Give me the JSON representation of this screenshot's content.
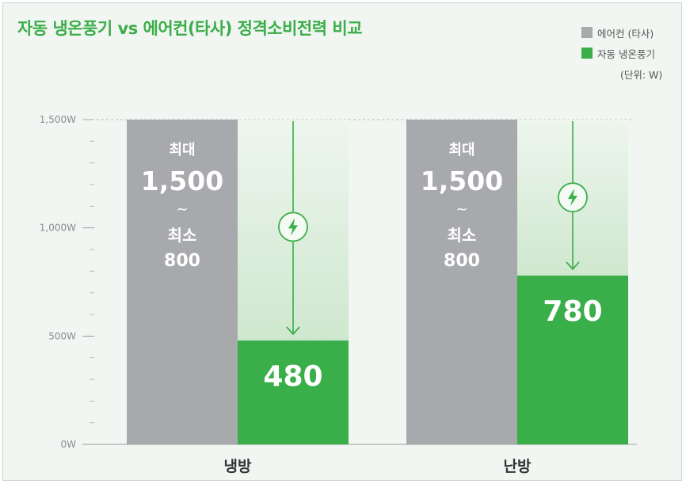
{
  "title": "자동 냉온풍기 vs 에어컨(타사) 정격소비전력 비교",
  "legend": [
    {
      "label": "에어컨 (타사)",
      "color": "#a7a9ac"
    },
    {
      "label": "자동 냉온풍기",
      "color": "#3aae49"
    }
  ],
  "unit_label": "(단위: W)",
  "chart_data": {
    "type": "bar",
    "title": "자동 냉온풍기 vs 에어컨(타사) 정격소비전력 비교",
    "categories": [
      "냉방",
      "난방"
    ],
    "series": [
      {
        "name": "에어컨 (타사)",
        "values": [
          1500,
          1500
        ],
        "color": "#a7a9ac"
      },
      {
        "name": "자동 냉온풍기",
        "values": [
          480,
          780
        ],
        "color": "#3aae49"
      }
    ],
    "competitor_labels": [
      {
        "max_label": "최대",
        "max_value": "1,500",
        "range_sep": "~",
        "min_label": "최소",
        "min_value": "800"
      },
      {
        "max_label": "최대",
        "max_value": "1,500",
        "range_sep": "~",
        "min_label": "최소",
        "min_value": "800"
      }
    ],
    "product_value_labels": [
      "480",
      "780"
    ],
    "ylim": [
      0,
      1500
    ],
    "y_ticks": [
      0,
      500,
      1000,
      1500
    ],
    "y_tick_labels": [
      "0W",
      "500W",
      "1,000W",
      "1,500W"
    ],
    "reference_line": 1500,
    "unit": "W"
  }
}
